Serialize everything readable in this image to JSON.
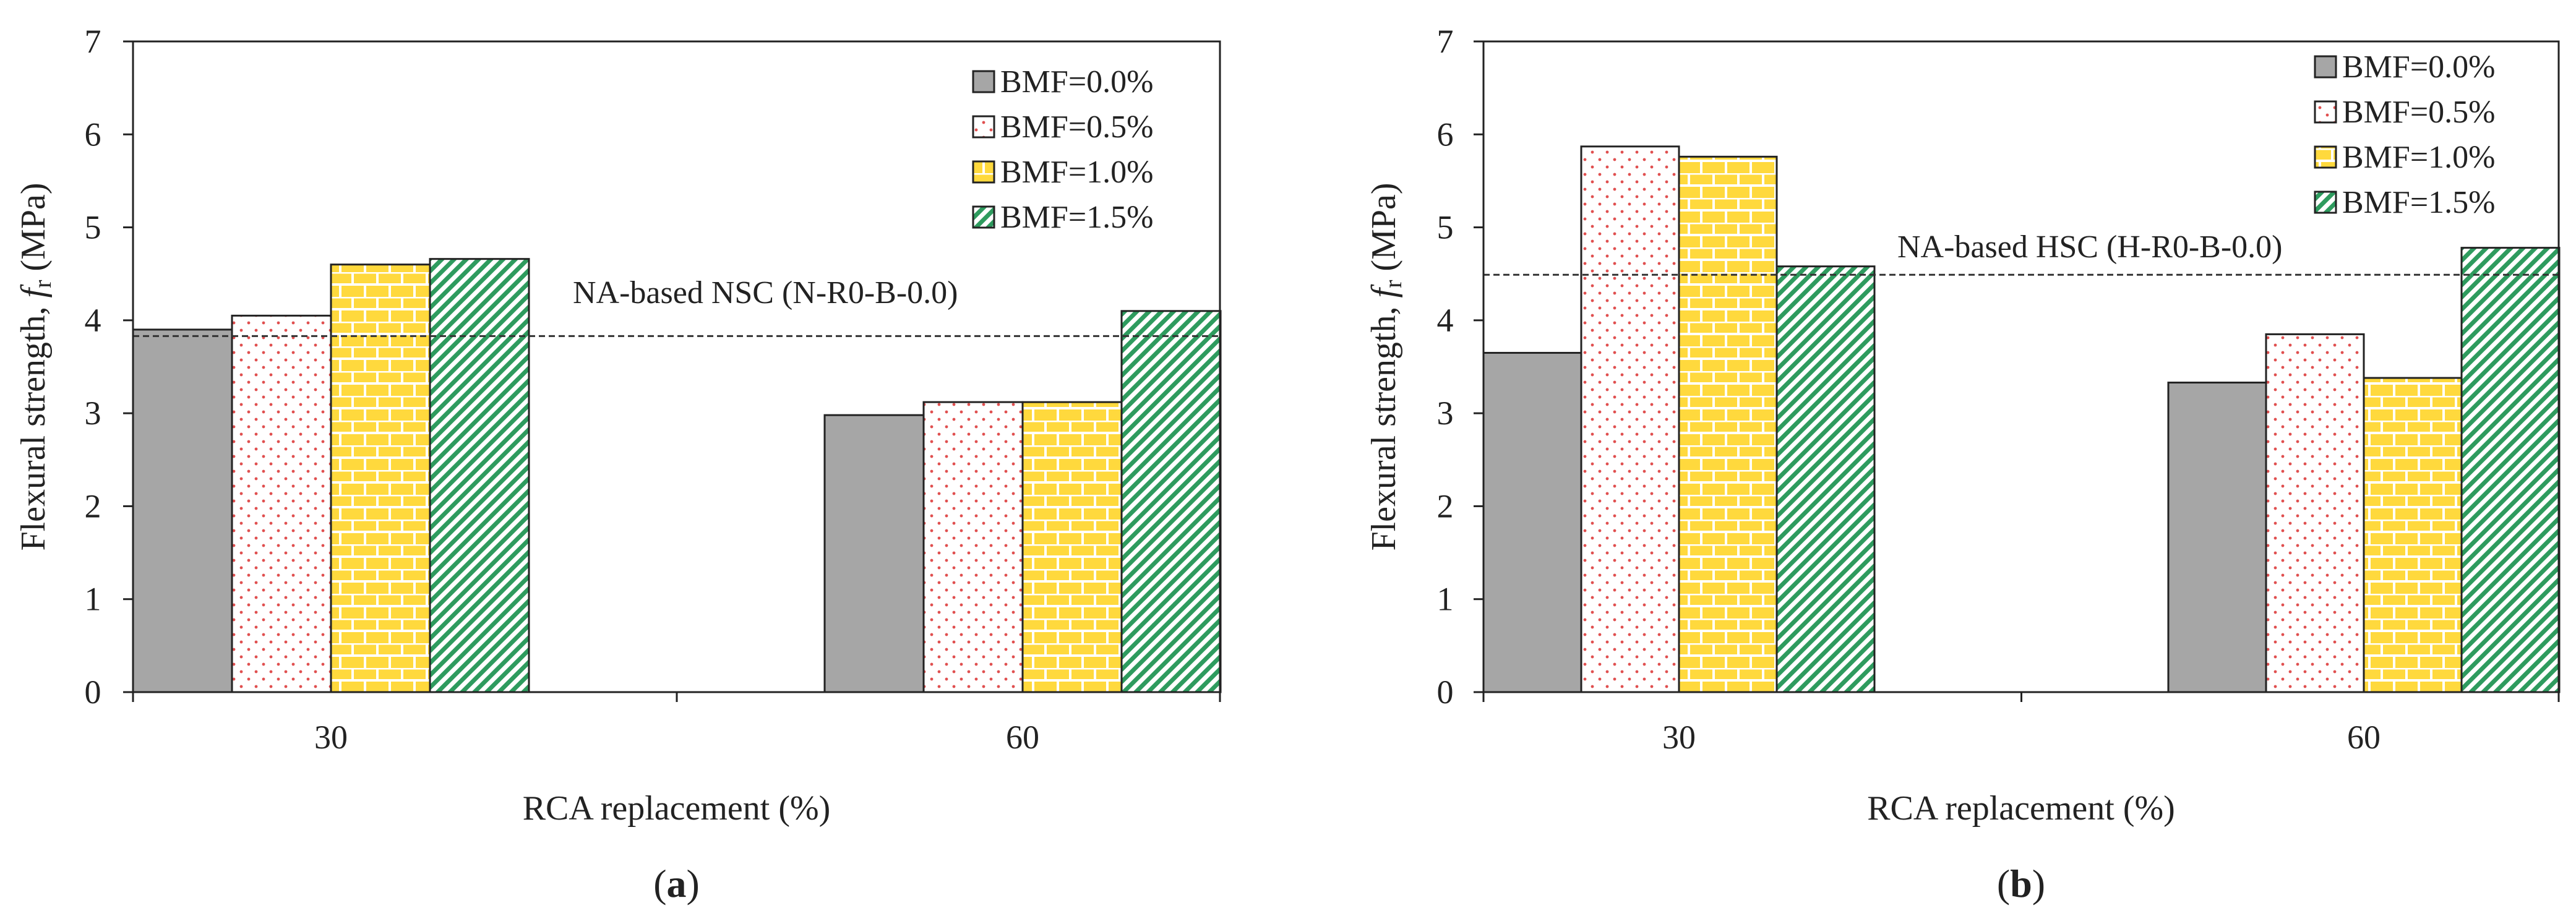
{
  "chart_data": [
    {
      "type": "bar",
      "panel_label_prefix": "(",
      "panel_label": "a",
      "panel_label_suffix": ")",
      "xlabel": "RCA replacement (%)",
      "ylabel_prefix": "Flexural  strength, ",
      "ylabel_symbol": "f",
      "ylabel_subscript": "r",
      "ylabel_suffix": " (MPa)",
      "ylim": [
        0,
        7
      ],
      "yticks": [
        "0",
        "1",
        "2",
        "3",
        "4",
        "5",
        "6",
        "7"
      ],
      "categories": [
        "30",
        "60"
      ],
      "series": [
        {
          "name": "BMF=0.0%",
          "values": [
            3.9,
            2.98
          ]
        },
        {
          "name": "BMF=0.5%",
          "values": [
            4.05,
            3.12
          ]
        },
        {
          "name": "BMF=1.0%",
          "values": [
            4.6,
            3.12
          ]
        },
        {
          "name": "BMF=1.5%",
          "values": [
            4.66,
            4.1
          ]
        }
      ],
      "reference_line": {
        "value": 3.83,
        "label": "NA-based NSC (N-R0-B-0.0)"
      },
      "legend_position": "top-right",
      "grid": false
    },
    {
      "type": "bar",
      "panel_label_prefix": "(",
      "panel_label": "b",
      "panel_label_suffix": ")",
      "xlabel": "RCA replacement (%)",
      "ylabel_prefix": "Flexural  strength, ",
      "ylabel_symbol": "f",
      "ylabel_subscript": "r",
      "ylabel_suffix": " (MPa)",
      "ylim": [
        0,
        7
      ],
      "yticks": [
        "0",
        "1",
        "2",
        "3",
        "4",
        "5",
        "6",
        "7"
      ],
      "categories": [
        "30",
        "60"
      ],
      "series": [
        {
          "name": "BMF=0.0%",
          "values": [
            3.65,
            3.33
          ]
        },
        {
          "name": "BMF=0.5%",
          "values": [
            5.87,
            3.85
          ]
        },
        {
          "name": "BMF=1.0%",
          "values": [
            5.76,
            3.38
          ]
        },
        {
          "name": "BMF=1.5%",
          "values": [
            4.58,
            4.78
          ]
        }
      ],
      "reference_line": {
        "value": 4.49,
        "label": "NA-based HSC (H-R0-B-0.0)"
      },
      "legend_position": "top-right",
      "grid": false
    }
  ],
  "colors": {
    "bmf_0_0_fill": "#a6a6a6",
    "bmf_0_5_dot": "#e05050",
    "bmf_1_0_fill": "#ffd93d",
    "bmf_1_0_mortar": "#ffffff",
    "bmf_1_5_stripe": "#2e9b5e",
    "axis": "#222222",
    "reference_line": "#333333"
  }
}
